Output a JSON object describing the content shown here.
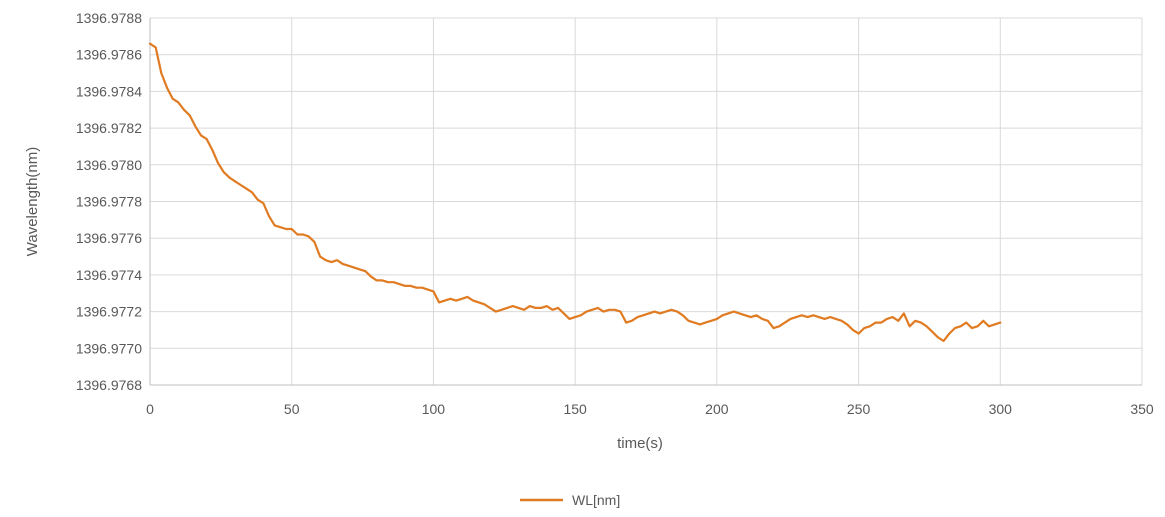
{
  "chart_data": {
    "type": "line",
    "title": "",
    "xlabel": "time(s)",
    "ylabel": "Wavelength(nm)",
    "xlim": [
      0,
      350
    ],
    "ylim": [
      1396.9768,
      1396.9788
    ],
    "x_ticks": [
      "0",
      "50",
      "100",
      "150",
      "200",
      "250",
      "300",
      "350"
    ],
    "y_ticks": [
      "1396.9768",
      "1396.9770",
      "1396.9772",
      "1396.9774",
      "1396.9776",
      "1396.9778",
      "1396.9780",
      "1396.9782",
      "1396.9784",
      "1396.9786",
      "1396.9788"
    ],
    "grid": true,
    "legend_position": "bottom-center",
    "series": [
      {
        "name": "WL[nm]",
        "color": "#E07B22",
        "x": [
          0,
          2,
          4,
          6,
          8,
          10,
          12,
          14,
          16,
          18,
          20,
          22,
          24,
          26,
          28,
          30,
          32,
          34,
          36,
          38,
          40,
          42,
          44,
          46,
          48,
          50,
          52,
          54,
          56,
          58,
          60,
          62,
          64,
          66,
          68,
          70,
          72,
          74,
          76,
          78,
          80,
          82,
          84,
          86,
          88,
          90,
          92,
          94,
          96,
          98,
          100,
          102,
          104,
          106,
          108,
          110,
          112,
          114,
          116,
          118,
          120,
          122,
          124,
          126,
          128,
          130,
          132,
          134,
          136,
          138,
          140,
          142,
          144,
          146,
          148,
          150,
          152,
          154,
          156,
          158,
          160,
          162,
          164,
          166,
          168,
          170,
          172,
          174,
          176,
          178,
          180,
          182,
          184,
          186,
          188,
          190,
          192,
          194,
          196,
          198,
          200,
          202,
          204,
          206,
          208,
          210,
          212,
          214,
          216,
          218,
          220,
          222,
          224,
          226,
          228,
          230,
          232,
          234,
          236,
          238,
          240,
          242,
          244,
          246,
          248,
          250,
          252,
          254,
          256,
          258,
          260,
          262,
          264,
          266,
          268,
          270,
          272,
          274,
          276,
          278,
          280,
          282,
          284,
          286,
          288,
          290,
          292,
          294,
          296,
          298,
          300
        ],
        "y": [
          1396.97866,
          1396.97864,
          1396.9785,
          1396.97842,
          1396.97836,
          1396.97834,
          1396.9783,
          1396.97827,
          1396.97821,
          1396.97816,
          1396.97814,
          1396.97808,
          1396.97801,
          1396.97796,
          1396.97793,
          1396.97791,
          1396.97789,
          1396.97787,
          1396.97785,
          1396.97781,
          1396.97779,
          1396.97772,
          1396.97767,
          1396.97766,
          1396.97765,
          1396.97765,
          1396.97762,
          1396.97762,
          1396.97761,
          1396.97758,
          1396.9775,
          1396.97748,
          1396.97747,
          1396.97748,
          1396.97746,
          1396.97745,
          1396.97744,
          1396.97743,
          1396.97742,
          1396.97739,
          1396.97737,
          1396.97737,
          1396.97736,
          1396.97736,
          1396.97735,
          1396.97734,
          1396.97734,
          1396.97733,
          1396.97733,
          1396.97732,
          1396.97731,
          1396.97725,
          1396.97726,
          1396.97727,
          1396.97726,
          1396.97727,
          1396.97728,
          1396.97726,
          1396.97725,
          1396.97724,
          1396.97722,
          1396.9772,
          1396.97721,
          1396.97722,
          1396.97723,
          1396.97722,
          1396.97721,
          1396.97723,
          1396.97722,
          1396.97722,
          1396.97723,
          1396.97721,
          1396.97722,
          1396.97719,
          1396.97716,
          1396.97717,
          1396.97718,
          1396.9772,
          1396.97721,
          1396.97722,
          1396.9772,
          1396.97721,
          1396.97721,
          1396.9772,
          1396.97714,
          1396.97715,
          1396.97717,
          1396.97718,
          1396.97719,
          1396.9772,
          1396.97719,
          1396.9772,
          1396.97721,
          1396.9772,
          1396.97718,
          1396.97715,
          1396.97714,
          1396.97713,
          1396.97714,
          1396.97715,
          1396.97716,
          1396.97718,
          1396.97719,
          1396.9772,
          1396.97719,
          1396.97718,
          1396.97717,
          1396.97718,
          1396.97716,
          1396.97715,
          1396.97711,
          1396.97712,
          1396.97714,
          1396.97716,
          1396.97717,
          1396.97718,
          1396.97717,
          1396.97718,
          1396.97717,
          1396.97716,
          1396.97717,
          1396.97716,
          1396.97715,
          1396.97713,
          1396.9771,
          1396.97708,
          1396.97711,
          1396.97712,
          1396.97714,
          1396.97714,
          1396.97716,
          1396.97717,
          1396.97715,
          1396.97719,
          1396.97712,
          1396.97715,
          1396.97714,
          1396.97712,
          1396.97709,
          1396.97706,
          1396.97704,
          1396.97708,
          1396.97711,
          1396.97712,
          1396.97714,
          1396.97711,
          1396.97712,
          1396.97715,
          1396.97712,
          1396.97713,
          1396.97714
        ]
      }
    ]
  }
}
